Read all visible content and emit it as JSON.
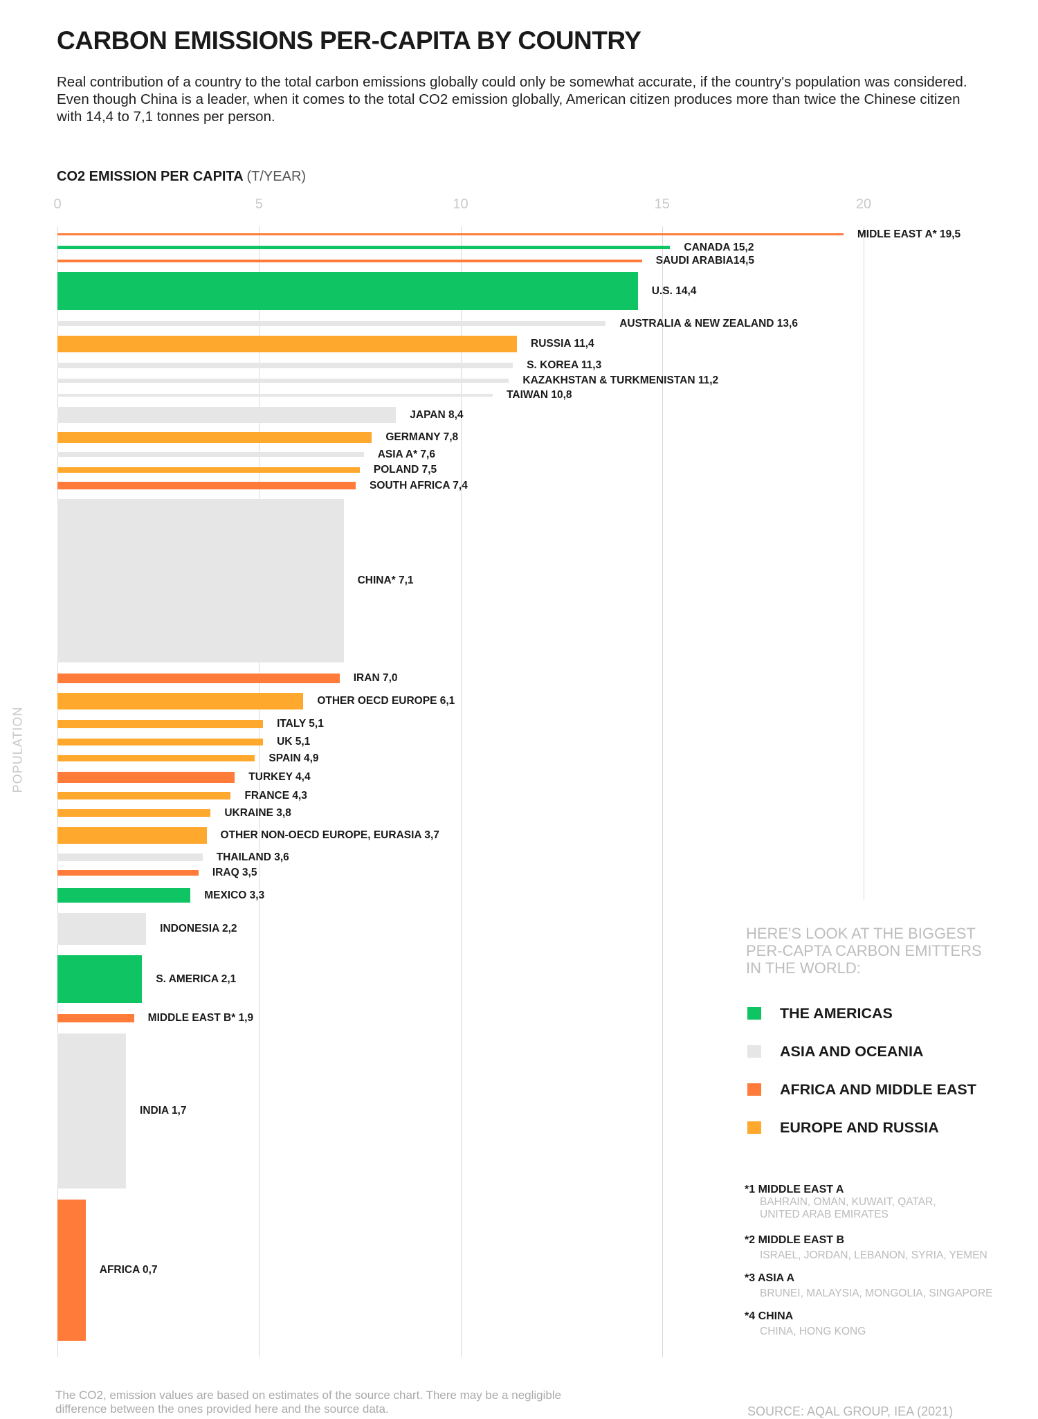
{
  "title": "CARBON EMISSIONS PER-CAPITA BY COUNTRY",
  "description": "Real contribution of a country to the total carbon emissions globally could only be somewhat accurate, if the country's population was considered. Even though China is a leader, when it comes to the total CO2 emission globally, American citizen produces more than twice the Chinese citizen with 14,4 to 7,1 tonnes per person.",
  "chart_data": {
    "type": "bar",
    "orientation": "horizontal",
    "xlabel": "CO2 EMISSION PER CAPITA",
    "xlabel_unit": "(T/YEAR)",
    "ylabel": "POPULATION",
    "xlim": [
      0,
      20
    ],
    "xticks": [
      "0",
      "5",
      "10",
      "15",
      "20"
    ],
    "grid": true,
    "colors": {
      "americas": "#0EC463",
      "asia": "#E6E6E6",
      "africa_me": "#FF7B3A",
      "europe": "#FFA82E"
    },
    "bars": [
      {
        "label": "MIDLE EAST A* 19,5",
        "value": 19.5,
        "region": "africa_me"
      },
      {
        "label": "CANADA 15,2",
        "value": 15.2,
        "region": "americas"
      },
      {
        "label": "SAUDI ARABIA14,5",
        "value": 14.5,
        "region": "africa_me"
      },
      {
        "label": "U.S. 14,4",
        "value": 14.4,
        "region": "americas"
      },
      {
        "label": "AUSTRALIA & NEW ZEALAND 13,6",
        "value": 13.6,
        "region": "asia"
      },
      {
        "label": "RUSSIA 11,4",
        "value": 11.4,
        "region": "europe"
      },
      {
        "label": "S. KOREA 11,3",
        "value": 11.3,
        "region": "asia"
      },
      {
        "label": "KAZAKHSTAN & TURKMENISTAN 11,2",
        "value": 11.2,
        "region": "asia"
      },
      {
        "label": "TAIWAN 10,8",
        "value": 10.8,
        "region": "asia"
      },
      {
        "label": "JAPAN 8,4",
        "value": 8.4,
        "region": "asia"
      },
      {
        "label": "GERMANY 7,8",
        "value": 7.8,
        "region": "europe"
      },
      {
        "label": "ASIA A* 7,6",
        "value": 7.6,
        "region": "asia"
      },
      {
        "label": "POLAND 7,5",
        "value": 7.5,
        "region": "europe"
      },
      {
        "label": "SOUTH AFRICA 7,4",
        "value": 7.4,
        "region": "africa_me"
      },
      {
        "label": "CHINA* 7,1",
        "value": 7.1,
        "region": "asia"
      },
      {
        "label": "IRAN 7,0",
        "value": 7.0,
        "region": "africa_me"
      },
      {
        "label": "OTHER OECD EUROPE 6,1",
        "value": 6.1,
        "region": "europe"
      },
      {
        "label": "ITALY 5,1",
        "value": 5.1,
        "region": "europe"
      },
      {
        "label": "UK 5,1",
        "value": 5.1,
        "region": "europe"
      },
      {
        "label": "SPAIN 4,9",
        "value": 4.9,
        "region": "europe"
      },
      {
        "label": "TURKEY 4,4",
        "value": 4.4,
        "region": "africa_me"
      },
      {
        "label": "FRANCE 4,3",
        "value": 4.3,
        "region": "europe"
      },
      {
        "label": "UKRAINE 3,8",
        "value": 3.8,
        "region": "europe"
      },
      {
        "label": "OTHER NON-OECD EUROPE, EURASIA 3,7",
        "value": 3.7,
        "region": "europe"
      },
      {
        "label": "THAILAND 3,6",
        "value": 3.6,
        "region": "asia"
      },
      {
        "label": "IRAQ 3,5",
        "value": 3.5,
        "region": "africa_me"
      },
      {
        "label": "MEXICO 3,3",
        "value": 3.3,
        "region": "americas"
      },
      {
        "label": "INDONESIA 2,2",
        "value": 2.2,
        "region": "asia"
      },
      {
        "label": "S. AMERICA 2,1",
        "value": 2.1,
        "region": "americas"
      },
      {
        "label": "MIDDLE EAST B* 1,9",
        "value": 1.9,
        "region": "africa_me"
      },
      {
        "label": "INDIA 1,7",
        "value": 1.7,
        "region": "asia"
      },
      {
        "label": "AFRICA 0,7",
        "value": 0.7,
        "region": "africa_me"
      }
    ]
  },
  "legend": {
    "heading": "HERE'S LOOK AT THE BIGGEST PER-CAPTA CARBON EMITTERS IN THE WORLD:",
    "items": [
      {
        "label": "THE AMERICAS",
        "color": "#0EC463"
      },
      {
        "label": "ASIA AND OCEANIA",
        "color": "#E6E6E6"
      },
      {
        "label": "AFRICA AND MIDDLE EAST",
        "color": "#FF7B3A"
      },
      {
        "label": "EUROPE AND RUSSIA",
        "color": "#FFA82E"
      }
    ]
  },
  "footnotes": [
    {
      "title": "*1 MIDDLE EAST A",
      "body": "BAHRAIN, OMAN, KUWAIT, QATAR, UNITED ARAB EMIRATES"
    },
    {
      "title": "*2 MIDDLE EAST B",
      "body": "ISRAEL, JORDAN, LEBANON, SYRIA, YEMEN"
    },
    {
      "title": "*3 ASIA A",
      "body": "BRUNEI, MALAYSIA, MONGOLIA, SINGAPORE"
    },
    {
      "title": "*4 CHINA",
      "body": "CHINA, HONG KONG"
    }
  ],
  "note": "The CO2, emission values are based on estimates of the source chart. There may be a negligible difference between the ones provided here and the source data.",
  "source": "SOURCE: AQAL GROUP, IEA (2021)"
}
